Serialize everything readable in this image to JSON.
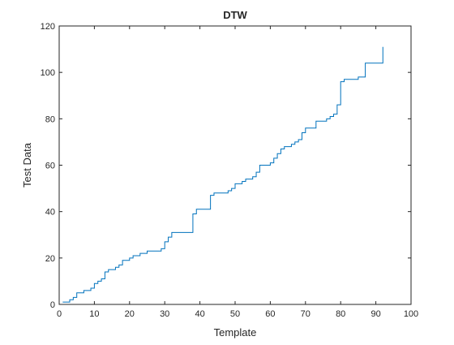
{
  "chart_data": {
    "type": "line",
    "title": "DTW",
    "xlabel": "Template",
    "ylabel": "Test Data",
    "xlim": [
      0,
      100
    ],
    "ylim": [
      0,
      120
    ],
    "xticks": [
      0,
      10,
      20,
      30,
      40,
      50,
      60,
      70,
      80,
      90,
      100
    ],
    "yticks": [
      0,
      20,
      40,
      60,
      80,
      100,
      120
    ],
    "grid": false,
    "series_color": "#0072BD",
    "series": [
      {
        "step": "post",
        "x": [
          1,
          2,
          3,
          4,
          5,
          7,
          8,
          9,
          10,
          11,
          12,
          13,
          14,
          15,
          16,
          17,
          18,
          19,
          20,
          21,
          22,
          23,
          24,
          25,
          26,
          27,
          28,
          29,
          30,
          31,
          32,
          33,
          34,
          35,
          36,
          37,
          38,
          39,
          40,
          41,
          42,
          43,
          44,
          45,
          46,
          47,
          48,
          49,
          50,
          51,
          52,
          53,
          54,
          55,
          56,
          57,
          58,
          59,
          60,
          61,
          62,
          63,
          64,
          65,
          66,
          67,
          68,
          69,
          70,
          71,
          72,
          73,
          74,
          75,
          76,
          77,
          78,
          79,
          80,
          81,
          82,
          83,
          84,
          85,
          86,
          87,
          88,
          89,
          90,
          91,
          92,
          92
        ],
        "y": [
          1,
          1,
          2,
          3,
          5,
          6,
          6,
          7,
          9,
          10,
          11,
          14,
          15,
          15,
          16,
          17,
          19,
          19,
          20,
          21,
          21,
          22,
          22,
          23,
          23,
          23,
          23,
          24,
          27,
          29,
          31,
          31,
          31,
          31,
          31,
          31,
          39,
          41,
          41,
          41,
          41,
          47,
          48,
          48,
          48,
          48,
          49,
          50,
          52,
          52,
          53,
          54,
          54,
          55,
          57,
          60,
          60,
          60,
          61,
          63,
          65,
          67,
          68,
          68,
          69,
          70,
          71,
          74,
          76,
          76,
          76,
          79,
          79,
          79,
          80,
          81,
          82,
          86,
          96,
          97,
          97,
          97,
          97,
          98,
          98,
          104,
          104,
          104,
          104,
          104,
          104,
          111
        ]
      }
    ]
  }
}
